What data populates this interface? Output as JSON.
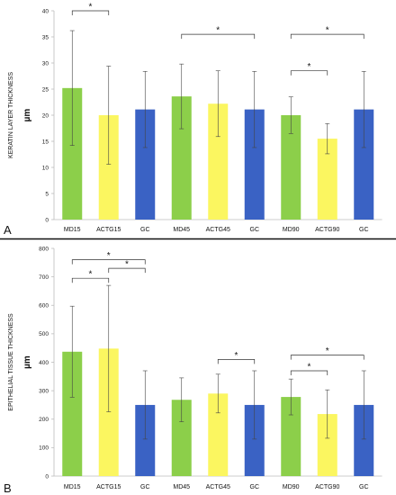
{
  "colors": {
    "green": "#8ccf4a",
    "yellow": "#fbf660",
    "blue": "#3a62c4",
    "axis": "#bdbdbd",
    "bracket": "#333333"
  },
  "chart_data": [
    {
      "type": "bar",
      "panel": "A",
      "title": "",
      "ylabel": "KERATIN LAYER THICKNESS",
      "unit": "µm",
      "ylim": [
        0,
        40
      ],
      "yticks": [
        0,
        5,
        10,
        15,
        20,
        25,
        30,
        35,
        40
      ],
      "grid": false,
      "categories": [
        "MD15",
        "ACTG15",
        "GC",
        "MD45",
        "ACTG45",
        "GC",
        "MD90",
        "ACTG90",
        "GC"
      ],
      "bar_colors": [
        "green",
        "yellow",
        "blue",
        "green",
        "yellow",
        "blue",
        "green",
        "yellow",
        "blue"
      ],
      "values": [
        25.2,
        20.0,
        21.1,
        23.6,
        22.2,
        21.1,
        20.0,
        15.5,
        21.1
      ],
      "errors": [
        11.0,
        9.4,
        7.3,
        6.2,
        6.3,
        7.3,
        3.5,
        2.9,
        7.3
      ],
      "significance": [
        {
          "from": 0,
          "to": 1,
          "level": 40,
          "label": "*"
        },
        {
          "from": 3,
          "to": 5,
          "level": 35.5,
          "label": "*"
        },
        {
          "from": 6,
          "to": 8,
          "level": 35.5,
          "label": "*"
        },
        {
          "from": 6,
          "to": 7,
          "level": 28.5,
          "label": "*"
        }
      ]
    },
    {
      "type": "bar",
      "panel": "B",
      "title": "",
      "ylabel": "EPITHELIAL TISSUE THICKNESS",
      "unit": "µm",
      "ylim": [
        0,
        800
      ],
      "yticks": [
        0,
        100,
        200,
        300,
        400,
        500,
        600,
        700,
        800
      ],
      "grid": false,
      "categories": [
        "MD15",
        "ACTG15",
        "GC",
        "MD45",
        "ACTG45",
        "GC",
        "MD90",
        "ACTG90",
        "GC"
      ],
      "bar_colors": [
        "green",
        "yellow",
        "blue",
        "green",
        "yellow",
        "blue",
        "green",
        "yellow",
        "blue"
      ],
      "values": [
        437,
        448,
        250,
        268,
        290,
        250,
        278,
        218,
        250
      ],
      "errors": [
        160,
        222,
        120,
        77,
        68,
        120,
        63,
        85,
        120
      ],
      "significance": [
        {
          "from": 0,
          "to": 1,
          "level": 695,
          "label": "*"
        },
        {
          "from": 1,
          "to": 2,
          "level": 730,
          "label": "*"
        },
        {
          "from": 0,
          "to": 2,
          "level": 760,
          "label": "*"
        },
        {
          "from": 4,
          "to": 5,
          "level": 410,
          "label": "*"
        },
        {
          "from": 6,
          "to": 7,
          "level": 370,
          "label": "*"
        },
        {
          "from": 6,
          "to": 8,
          "level": 425,
          "label": "*"
        }
      ]
    }
  ]
}
